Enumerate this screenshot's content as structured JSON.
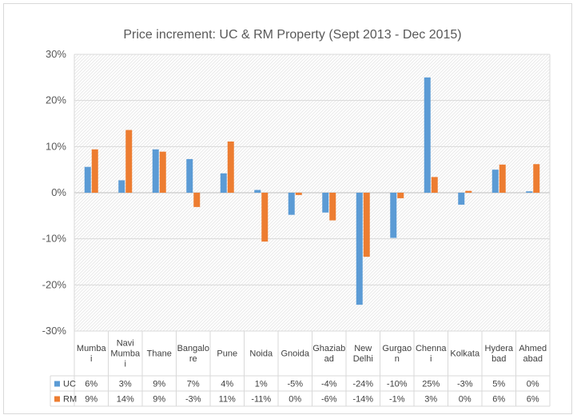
{
  "chart_data": {
    "type": "bar",
    "title": "Price increment: UC & RM Property (Sept 2013 - Dec 2015)",
    "categories": [
      [
        "Mumba",
        "i"
      ],
      [
        "Navi",
        "Mumba",
        "i"
      ],
      [
        "Thane"
      ],
      [
        "Bangalo",
        "re"
      ],
      [
        "Pune"
      ],
      [
        "Noida"
      ],
      [
        "Gnoida"
      ],
      [
        "Ghaziab",
        "ad"
      ],
      [
        "New",
        "Delhi"
      ],
      [
        "Gurgao",
        "n"
      ],
      [
        "Chenna",
        "i"
      ],
      [
        "Kolkata"
      ],
      [
        "Hydera",
        "bad"
      ],
      [
        "Ahmed",
        "abad"
      ]
    ],
    "series": [
      {
        "name": "UC",
        "color": "#5B9BD5",
        "values": [
          5.6,
          2.7,
          9.4,
          7.3,
          4.2,
          0.6,
          -4.8,
          -4.3,
          -24.3,
          -9.8,
          25.0,
          -2.6,
          5.0,
          0.3
        ],
        "labels": [
          "6%",
          "3%",
          "9%",
          "7%",
          "4%",
          "1%",
          "-5%",
          "-4%",
          "-24%",
          "-10%",
          "25%",
          "-3%",
          "5%",
          "0%"
        ]
      },
      {
        "name": "RM",
        "color": "#ED7D31",
        "values": [
          9.4,
          13.6,
          8.9,
          -3.1,
          11.1,
          -10.6,
          -0.5,
          -6.0,
          -13.9,
          -1.2,
          3.4,
          0.4,
          6.1,
          6.2
        ],
        "labels": [
          "9%",
          "14%",
          "9%",
          "-3%",
          "11%",
          "-11%",
          "0%",
          "-6%",
          "-14%",
          "-1%",
          "3%",
          "0%",
          "6%",
          "6%"
        ]
      }
    ],
    "ylim": [
      -30,
      30
    ],
    "yticks": [
      30,
      20,
      10,
      0,
      -10,
      -20,
      -30
    ],
    "ytick_labels": [
      "30%",
      "20%",
      "10%",
      "0%",
      "-10%",
      "-20%",
      "-30%"
    ],
    "grid": true,
    "data_table": true
  }
}
